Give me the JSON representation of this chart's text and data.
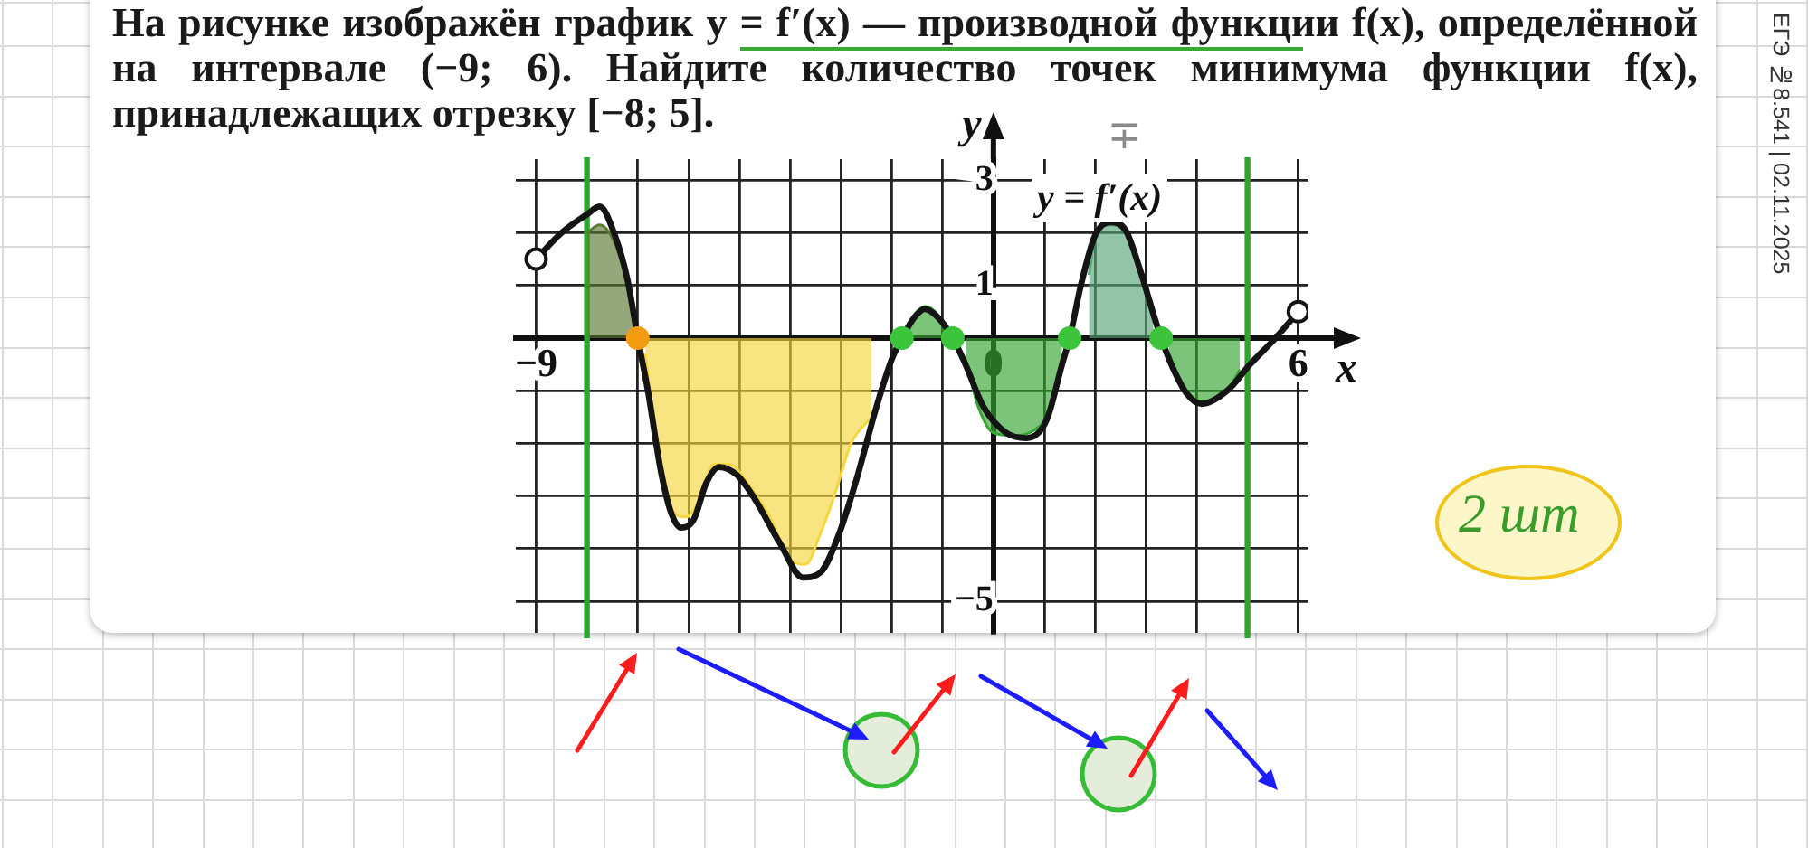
{
  "chart_data": {
    "type": "line",
    "title": "На рисунке изображён график y = f′(x) — производной функции f(x), определённой на интервале (−9; 6). Найдите количество точек минимума функции f(x), принадлежащих отрезку [−8; 5].",
    "xlabel": "x",
    "ylabel": "y",
    "xlim": [
      -9.4,
      6.2
    ],
    "ylim": [
      -5.6,
      3.4
    ],
    "xticks": [
      {
        "value": -9,
        "label": "−9"
      },
      {
        "value": -7,
        "label": null
      },
      {
        "value": -6,
        "label": null
      },
      {
        "value": -5,
        "label": null
      },
      {
        "value": -4,
        "label": null
      },
      {
        "value": -3,
        "label": null
      },
      {
        "value": -2,
        "label": null
      },
      {
        "value": -1,
        "label": null
      },
      0,
      {
        "value": 1,
        "label": null
      },
      {
        "value": 2,
        "label": null
      },
      {
        "value": 3,
        "label": null
      },
      {
        "value": 4,
        "label": null
      },
      6
    ],
    "yticks": [
      {
        "value": -5,
        "label": "−5"
      },
      {
        "value": -4,
        "label": null
      },
      {
        "value": -3,
        "label": null
      },
      {
        "value": -2,
        "label": null
      },
      {
        "value": -1,
        "label": null
      },
      {
        "value": 0,
        "label": null
      },
      1,
      {
        "value": 2,
        "label": null
      },
      3
    ],
    "grid": true,
    "series": [
      {
        "type": "line",
        "color": "#141414",
        "x": [
          -9,
          -8.5,
          -8,
          -7.75,
          -7.45,
          -7.2,
          -7,
          -6.8,
          -6.55,
          -6.35,
          -6.15,
          -5.9,
          -5.65,
          -5.4,
          -5.05,
          -4.7,
          -4.2,
          -3.75,
          -3.4,
          -3.05,
          -2.7,
          -2.3,
          -2,
          -1.8,
          -1.55,
          -1.35,
          -1.1,
          -0.8,
          -0.55,
          -0.2,
          0.25,
          0.65,
          1.05,
          1.35,
          1.5,
          1.72,
          2,
          2.3,
          2.6,
          2.9,
          3.15,
          3.3,
          3.5,
          3.8,
          4.1,
          4.6,
          5.05,
          5.55,
          6
        ],
        "values": [
          1.5,
          2,
          2.35,
          2.5,
          1.95,
          1.1,
          0,
          -1,
          -2.5,
          -3.3,
          -3.6,
          -3.45,
          -2.75,
          -2.45,
          -2.6,
          -3.05,
          -3.9,
          -4.55,
          -4.45,
          -3.75,
          -2.7,
          -1.3,
          -0.4,
          0,
          0.4,
          0.55,
          0.4,
          0,
          -0.5,
          -1.3,
          -1.8,
          -1.9,
          -1.55,
          -0.5,
          0,
          1,
          1.95,
          2.2,
          2.05,
          1.25,
          0.45,
          0,
          -0.5,
          -1.05,
          -1.25,
          -1,
          -0.5,
          0,
          0.5
        ]
      },
      {
        "type": "area",
        "color": "#5b7a34",
        "x": [
          -8,
          -7.75,
          -7.45,
          -7.2,
          -7
        ],
        "values": [
          2,
          2.15,
          1.8,
          1,
          0
        ]
      },
      {
        "type": "area",
        "color": "#f5d63d",
        "x": [
          -6.85,
          -6.6,
          -6.3,
          -6.05,
          -5.8,
          -5.5,
          -5.2,
          -4.8,
          -4.4,
          -4,
          -3.7,
          -3.4,
          -3.1,
          -2.8,
          -2.4
        ],
        "values": [
          -0.3,
          -2.2,
          -3.3,
          -3.4,
          -3.1,
          -2.4,
          -2.4,
          -2.8,
          -3.4,
          -4.2,
          -4.3,
          -3.7,
          -2.9,
          -2,
          -1.5
        ]
      },
      {
        "type": "area",
        "color": "#36a532",
        "x": [
          -1.8,
          -1.55,
          -1.35,
          -1.1,
          -0.85
        ],
        "values": [
          0,
          0.45,
          0.6,
          0.45,
          0
        ]
      },
      {
        "type": "area",
        "color": "#36a532",
        "x": [
          -0.55,
          -0.3,
          0,
          0.4,
          0.8,
          1.1,
          1.35
        ],
        "values": [
          -0.4,
          -1.3,
          -1.8,
          -1.85,
          -1.75,
          -1.4,
          -0.5
        ]
      },
      {
        "type": "area",
        "color": "#5aa57a",
        "x": [
          1.88,
          2,
          2.3,
          2.6,
          2.9,
          3.15
        ],
        "values": [
          1.2,
          1.9,
          2.15,
          2,
          1.3,
          0.3
        ]
      },
      {
        "type": "area",
        "color": "#36a532",
        "x": [
          3.45,
          3.7,
          4,
          4.3,
          4.6,
          4.85
        ],
        "values": [
          -0.3,
          -0.9,
          -1.2,
          -1.2,
          -1,
          -0.6
        ]
      },
      {
        "type": "scatter",
        "color": "#ffffff",
        "marker": "circle",
        "x": [
          -9,
          6
        ],
        "values": [
          1.5,
          0.5
        ]
      },
      {
        "type": "scatter",
        "color": "#f39c12",
        "marker": "circle",
        "x": [
          -7
        ],
        "values": [
          0
        ]
      },
      {
        "type": "scatter",
        "color": "#3dc43d",
        "marker": "circle",
        "x": [
          -1.8,
          -0.8,
          1.5,
          3.3
        ],
        "values": [
          0,
          0,
          0,
          0
        ]
      }
    ],
    "ref_lines": [
      {
        "axis": "x",
        "value": -8,
        "color": "#2ea52e"
      },
      {
        "axis": "x",
        "value": 5,
        "color": "#2ea52e"
      }
    ],
    "annotations": [
      "y = f′(x)",
      "∓",
      "2 шт",
      "ЕГЭ №8.541 | 02.11.2025"
    ]
  }
}
